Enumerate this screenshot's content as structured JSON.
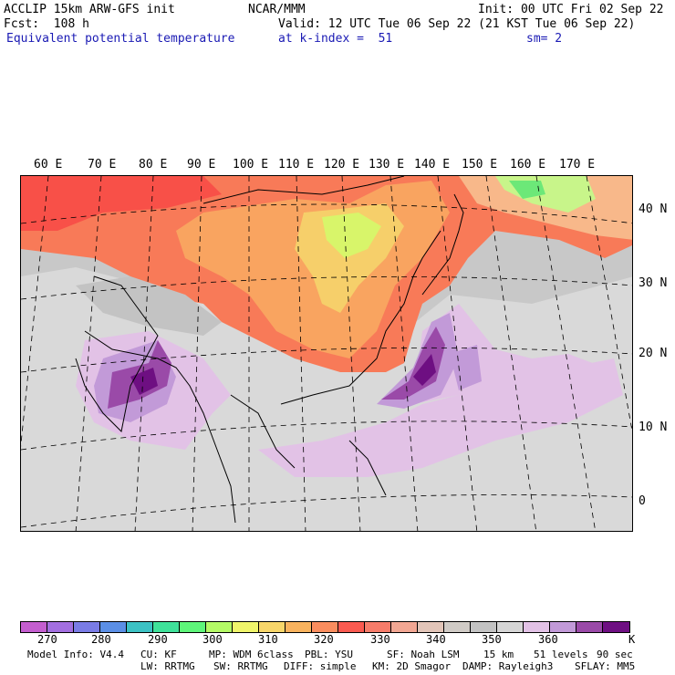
{
  "header": {
    "model": "ACCLIP 15km ARW-GFS init",
    "org": "NCAR/MMM",
    "init": "Init: 00 UTC Fri 02 Sep 22",
    "fcst": "Fcst:  108 h",
    "valid": "Valid: 12 UTC Tue 06 Sep 22 (21 KST Tue 06 Sep 22)",
    "field": "Equivalent potential temperature",
    "level": "at k-index =  51",
    "smooth": "sm= 2"
  },
  "map": {
    "lon_labels": [
      "60 E",
      "70 E",
      "80 E",
      "90 E",
      "100 E",
      "110 E",
      "120 E",
      "130 E",
      "140 E",
      "150 E",
      "160 E",
      "170 E"
    ],
    "lat_labels": [
      "40 N",
      "30 N",
      "20 N",
      "10 N",
      "0"
    ]
  },
  "colorbar": {
    "colors": [
      "#c45ecf",
      "#a36fe0",
      "#7a7ce6",
      "#5b8fe6",
      "#3cc2c4",
      "#3fe29a",
      "#5ef57a",
      "#b4fa66",
      "#f0f56b",
      "#f8d66a",
      "#f9b35e",
      "#fa8d5e",
      "#fa5a50",
      "#f67c6a",
      "#f2a793",
      "#e2c5b8",
      "#d0cbc6",
      "#c3c3c3",
      "#d6d6d6",
      "#e2c2e6",
      "#c29ad8",
      "#9a4aa8",
      "#6e0f82"
    ],
    "labels": [
      "270",
      "280",
      "290",
      "300",
      "310",
      "320",
      "330",
      "340",
      "350",
      "360",
      "K"
    ]
  },
  "model_info": {
    "line1": [
      "Model Info: V4.4",
      "CU: KF",
      "MP: WDM 6class",
      "PBL: YSU",
      "SF: Noah LSM",
      "15 km",
      "51 levels",
      "90 sec"
    ],
    "line2": [
      "LW: RRTMG",
      "SW: RRTMG",
      "DIFF: simple",
      "KM: 2D Smagor",
      "DAMP: Rayleigh3",
      "SFLAY: MM5"
    ]
  }
}
